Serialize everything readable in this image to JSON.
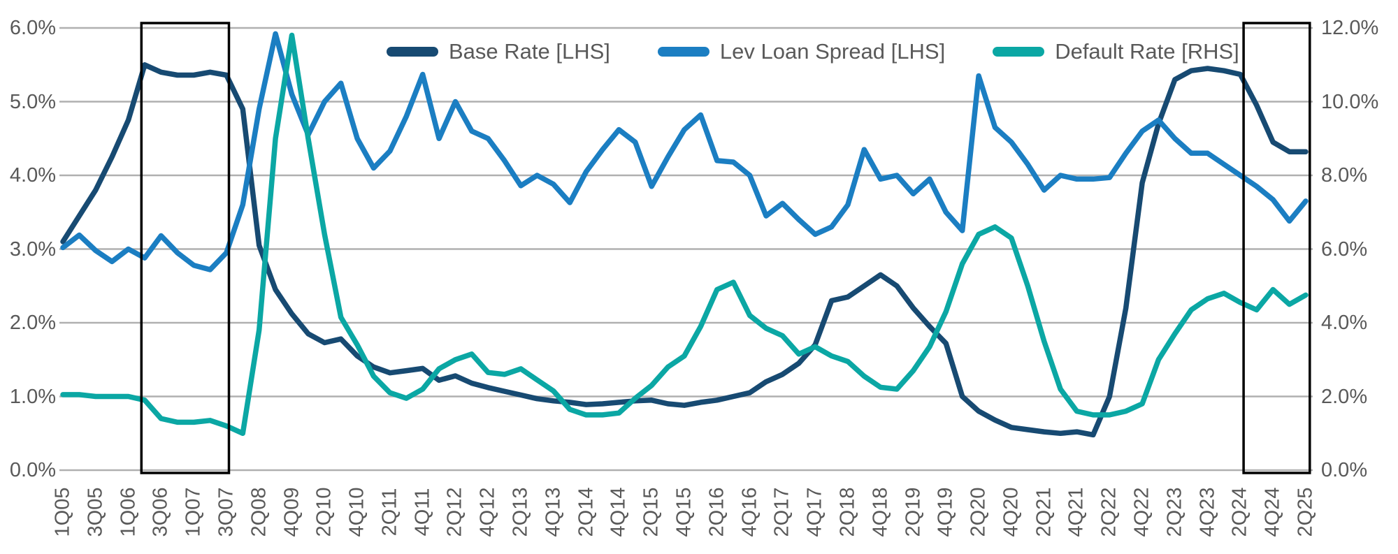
{
  "chart_data": {
    "type": "line",
    "title": "",
    "grid": true,
    "legend_position": "top-center",
    "points_per_series": 77,
    "x_label_every_n_points": 2,
    "x_tick_labels": [
      "1Q05",
      "3Q05",
      "1Q06",
      "3Q06",
      "1Q07",
      "3Q07",
      "2Q08",
      "4Q09",
      "2Q10",
      "4Q10",
      "2Q11",
      "4Q11",
      "2Q12",
      "4Q12",
      "2Q13",
      "4Q13",
      "2Q14",
      "4Q14",
      "2Q15",
      "4Q15",
      "2Q16",
      "4Q16",
      "2Q17",
      "4Q17",
      "2Q18",
      "4Q18",
      "2Q19",
      "4Q19",
      "2Q20",
      "4Q20",
      "2Q21",
      "4Q21",
      "2Q22",
      "4Q22",
      "2Q23",
      "4Q23",
      "2Q24",
      "4Q24",
      "2Q25"
    ],
    "left_axis": {
      "min": 0,
      "max": 6,
      "ticks": [
        "6.0%",
        "5.0%",
        "4.0%",
        "3.0%",
        "2.0%",
        "1.0%",
        "0.0%"
      ]
    },
    "right_axis": {
      "min": 0,
      "max": 12,
      "ticks": [
        "12.0%",
        "10.0%",
        "8.0%",
        "6.0%",
        "4.0%",
        "2.0%",
        "0.0%"
      ]
    },
    "grid_color": "#b0b0b0",
    "text_color": "#595959",
    "highlight_box_color": "#000000",
    "highlight_boxes": [
      {
        "from_index": 4.8,
        "to_index": 10.15
      },
      {
        "from_index": 72.2,
        "to_index": 76.25
      }
    ],
    "series": [
      {
        "name": "Base Rate [LHS]",
        "axis": "left",
        "color": "#174a72",
        "values": [
          3.1,
          3.45,
          3.8,
          4.25,
          4.75,
          5.5,
          5.4,
          5.36,
          5.36,
          5.4,
          5.36,
          4.9,
          3.05,
          2.45,
          2.12,
          1.85,
          1.73,
          1.78,
          1.55,
          1.4,
          1.32,
          1.35,
          1.38,
          1.22,
          1.28,
          1.18,
          1.12,
          1.07,
          1.02,
          0.97,
          0.94,
          0.92,
          0.89,
          0.9,
          0.92,
          0.94,
          0.95,
          0.9,
          0.88,
          0.92,
          0.95,
          1.0,
          1.05,
          1.2,
          1.3,
          1.45,
          1.7,
          2.3,
          2.35,
          2.5,
          2.65,
          2.5,
          2.2,
          1.95,
          1.72,
          1.0,
          0.8,
          0.68,
          0.58,
          0.55,
          0.52,
          0.5,
          0.52,
          0.48,
          1.0,
          2.2,
          3.9,
          4.7,
          5.3,
          5.42,
          5.45,
          5.42,
          5.37,
          4.95,
          4.45,
          4.32,
          4.32
        ]
      },
      {
        "name": "Lev Loan Spread [LHS]",
        "axis": "left",
        "color": "#1b7ec2",
        "values": [
          3.02,
          3.19,
          2.98,
          2.83,
          3.0,
          2.88,
          3.18,
          2.95,
          2.78,
          2.72,
          2.95,
          3.6,
          4.9,
          5.92,
          5.1,
          4.55,
          5.0,
          5.25,
          4.5,
          4.1,
          4.33,
          4.8,
          5.37,
          4.5,
          5.0,
          4.6,
          4.5,
          4.2,
          3.86,
          4.0,
          3.88,
          3.63,
          4.05,
          4.35,
          4.62,
          4.45,
          3.85,
          4.25,
          4.62,
          4.82,
          4.2,
          4.18,
          4.0,
          3.45,
          3.62,
          3.4,
          3.2,
          3.3,
          3.6,
          4.35,
          3.95,
          4.0,
          3.75,
          3.95,
          3.5,
          3.25,
          5.35,
          4.65,
          4.45,
          4.15,
          3.8,
          4.0,
          3.95,
          3.95,
          3.97,
          4.3,
          4.6,
          4.75,
          4.5,
          4.3,
          4.3,
          4.15,
          4.0,
          3.85,
          3.67,
          3.38,
          3.65
        ]
      },
      {
        "name": "Default Rate [RHS]",
        "axis": "right",
        "color": "#0ba7a4",
        "values": [
          2.05,
          2.05,
          2.0,
          2.0,
          2.0,
          1.9,
          1.4,
          1.3,
          1.3,
          1.35,
          1.2,
          1.0,
          3.8,
          9.0,
          11.8,
          9.0,
          6.4,
          4.15,
          3.4,
          2.55,
          2.1,
          1.95,
          2.2,
          2.75,
          3.0,
          3.15,
          2.65,
          2.6,
          2.75,
          2.45,
          2.15,
          1.65,
          1.5,
          1.5,
          1.55,
          1.95,
          2.3,
          2.8,
          3.1,
          3.9,
          4.9,
          5.1,
          4.2,
          3.85,
          3.65,
          3.15,
          3.35,
          3.1,
          2.95,
          2.55,
          2.25,
          2.2,
          2.7,
          3.35,
          4.3,
          5.6,
          6.4,
          6.6,
          6.3,
          5.0,
          3.5,
          2.2,
          1.6,
          1.5,
          1.5,
          1.6,
          1.8,
          3.0,
          3.7,
          4.35,
          4.65,
          4.8,
          4.55,
          4.35,
          4.9,
          4.5,
          4.75
        ]
      }
    ]
  }
}
